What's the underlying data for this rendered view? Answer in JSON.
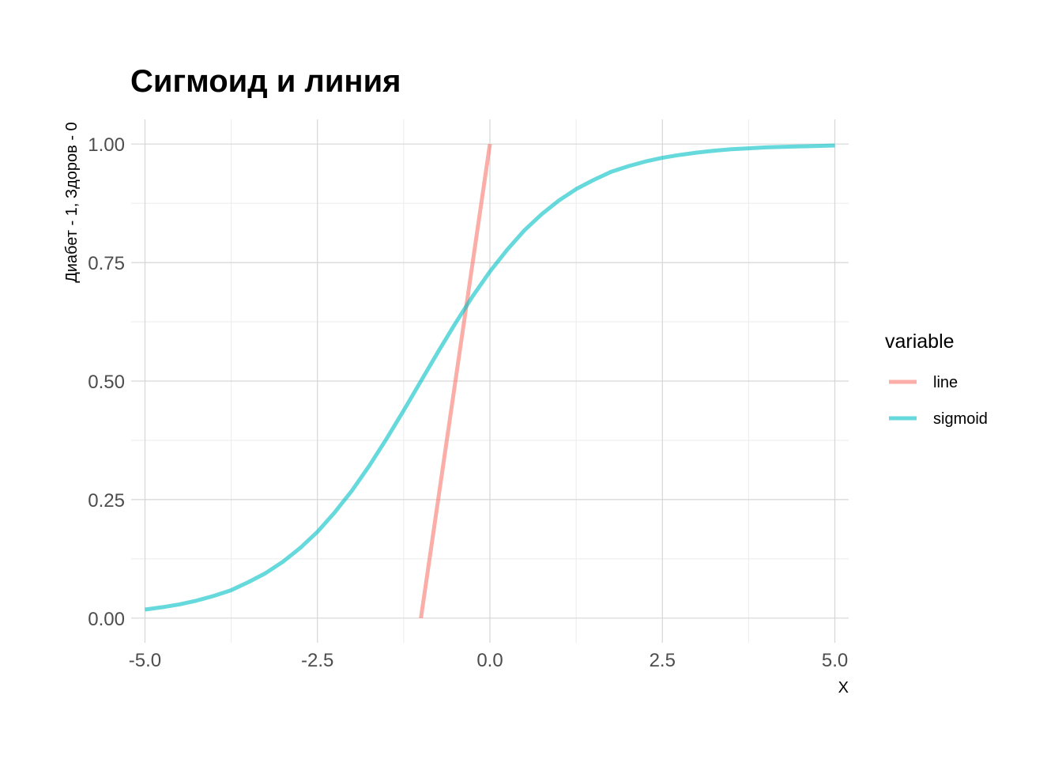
{
  "chart_data": {
    "type": "line",
    "title": "Сигмоид и линия",
    "xlabel": "X",
    "ylabel": "Диабет - 1, Здоров - 0",
    "xlim": [
      -5.2,
      5.2
    ],
    "ylim": [
      -0.052,
      1.052
    ],
    "x_ticks": [
      "-5.0",
      "-2.5",
      "0.0",
      "2.5",
      "5.0"
    ],
    "y_ticks": [
      "0.00",
      "0.25",
      "0.50",
      "0.75",
      "1.00"
    ],
    "grid": true,
    "legend": {
      "title": "variable",
      "position": "right"
    },
    "series": [
      {
        "name": "line",
        "color": "#F8766D",
        "x": [
          -1.0,
          0.0
        ],
        "y": [
          0.0,
          1.0
        ]
      },
      {
        "name": "sigmoid",
        "color": "#00BFC4",
        "x": [
          -5.0,
          -4.75,
          -4.5,
          -4.25,
          -4.0,
          -3.75,
          -3.5,
          -3.25,
          -3.0,
          -2.75,
          -2.5,
          -2.25,
          -2.0,
          -1.75,
          -1.5,
          -1.25,
          -1.0,
          -0.75,
          -0.5,
          -0.25,
          0.0,
          0.25,
          0.5,
          0.75,
          1.0,
          1.25,
          1.5,
          1.75,
          2.0,
          2.25,
          2.5,
          2.75,
          3.0,
          3.25,
          3.5,
          3.75,
          4.0,
          4.25,
          4.5,
          4.75,
          5.0
        ],
        "y": [
          0.018,
          0.023,
          0.029,
          0.037,
          0.047,
          0.059,
          0.076,
          0.095,
          0.119,
          0.148,
          0.182,
          0.223,
          0.269,
          0.321,
          0.378,
          0.438,
          0.5,
          0.562,
          0.622,
          0.679,
          0.731,
          0.777,
          0.818,
          0.852,
          0.881,
          0.905,
          0.924,
          0.941,
          0.953,
          0.963,
          0.971,
          0.977,
          0.982,
          0.986,
          0.989,
          0.991,
          0.993,
          0.994,
          0.995,
          0.996,
          0.997
        ]
      }
    ]
  }
}
